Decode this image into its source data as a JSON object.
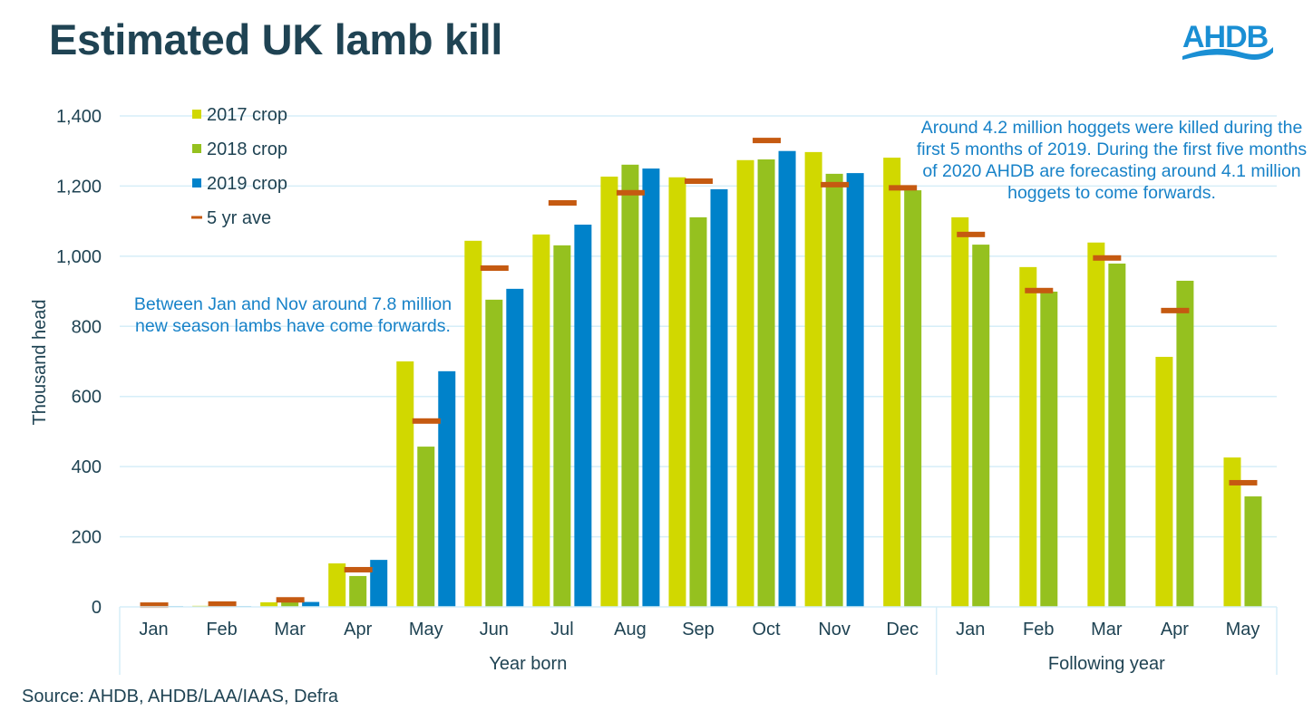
{
  "title": "Estimated UK lamb kill",
  "logo": {
    "text": "AHDB",
    "color": "#1a8fd4"
  },
  "source": "Source: AHDB, AHDB/LAA/IAAS, Defra",
  "annotations": {
    "left": "Between Jan and Nov around 7.8 million new season lambs have come forwards.",
    "right": "Around 4.2 million hoggets were killed during the first 5 months of 2019. During the first five months of 2020 AHDB are forecasting around 4.1 million hoggets to come forwards."
  },
  "chart_data": {
    "type": "bar",
    "title": "Estimated UK lamb kill",
    "xlabel": "",
    "ylabel": "Thousand head",
    "ylim": [
      0,
      1400
    ],
    "yticks": [
      0,
      200,
      400,
      600,
      800,
      1000,
      1200,
      1400
    ],
    "ytick_labels": [
      "0",
      "200",
      "400",
      "600",
      "800",
      "1,000",
      "1,200",
      "1,400"
    ],
    "grid": true,
    "legend_position": "top-left",
    "categories": [
      "Jan",
      "Feb",
      "Mar",
      "Apr",
      "May",
      "Jun",
      "Jul",
      "Aug",
      "Sep",
      "Oct",
      "Nov",
      "Dec",
      "Jan",
      "Feb",
      "Mar",
      "Apr",
      "May"
    ],
    "groups": [
      {
        "label": "Year born",
        "start": 0,
        "end": 11
      },
      {
        "label": "Following year",
        "start": 12,
        "end": 16
      }
    ],
    "series": [
      {
        "name": "2017 crop",
        "kind": "bar",
        "color": "#d1d800",
        "values": [
          0,
          3,
          13,
          124,
          700,
          1044,
          1062,
          1227,
          1225,
          1274,
          1297,
          1281,
          1111,
          969,
          1039,
          713,
          426
        ]
      },
      {
        "name": "2018 crop",
        "kind": "bar",
        "color": "#95c11f",
        "values": [
          0,
          0,
          13,
          88,
          457,
          876,
          1031,
          1261,
          1111,
          1276,
          1235,
          1188,
          1033,
          899,
          979,
          930,
          315
        ]
      },
      {
        "name": "2019 crop",
        "kind": "bar",
        "color": "#0082ca",
        "values": [
          2,
          2,
          14,
          134,
          672,
          907,
          1090,
          1250,
          1191,
          1300,
          1237,
          null,
          null,
          null,
          null,
          null,
          null
        ]
      },
      {
        "name": "5 yr ave",
        "kind": "marker",
        "color": "#c55a11",
        "values": [
          5,
          8,
          20,
          106,
          530,
          966,
          1152,
          1181,
          1214,
          1330,
          1204,
          1195,
          1062,
          902,
          995,
          845,
          354
        ]
      }
    ]
  }
}
